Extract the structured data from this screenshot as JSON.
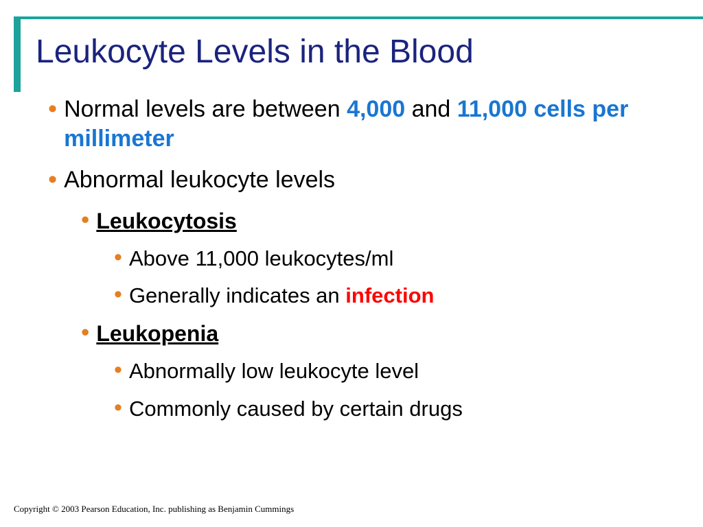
{
  "accent_color": "#1ba39c",
  "title_color": "#1a237e",
  "bullet_color": "#e67e22",
  "highlight_blue": "#1976d2",
  "highlight_red": "#ff0000",
  "title": "Leukocyte Levels in the Blood",
  "bullets": {
    "normal_prefix": "Normal levels are between ",
    "normal_hl1": "4,000",
    "normal_mid": " and ",
    "normal_hl2": "11,000 cells per millimeter",
    "abnormal": "Abnormal leukocyte levels",
    "leukocytosis": "Leukocytosis",
    "leukocytosis_1": "Above 11,000 leukocytes/ml",
    "leukocytosis_2a": "Generally indicates an ",
    "leukocytosis_2b": "infection",
    "leukopenia": "Leukopenia",
    "leukopenia_1": "Abnormally low leukocyte level",
    "leukopenia_2": "Commonly caused by certain drugs"
  },
  "copyright": "Copyright © 2003 Pearson Education, Inc. publishing as Benjamin Cummings"
}
